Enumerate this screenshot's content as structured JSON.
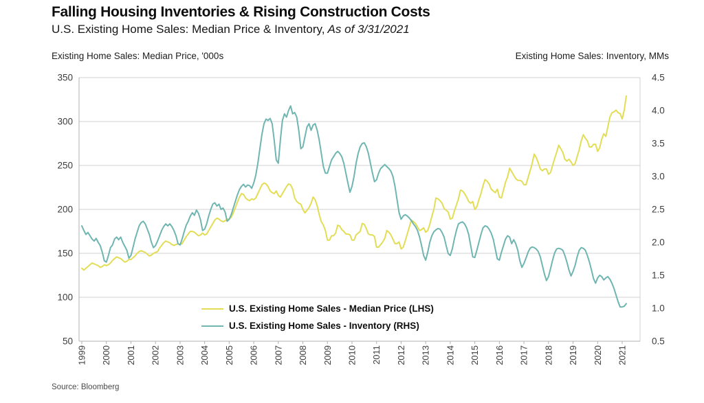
{
  "header": {
    "title": "Falling Housing Inventories & Rising Construction Costs",
    "subtitle_main": "U.S. Existing Home Sales: Median Price & Inventory,",
    "subtitle_date": " As of 3/31/2021"
  },
  "axis_headers": {
    "left": "Existing Home Sales: Median Price, '000s",
    "right": "Existing Home Sales: Inventory, MMs"
  },
  "legend": {
    "items": [
      {
        "label": "U.S. Existing Home Sales - Median Price (LHS)",
        "color": "#e3dd55"
      },
      {
        "label": "U.S. Existing Home Sales - Inventory (RHS)",
        "color": "#6fb5b1"
      }
    ]
  },
  "source": "Source: Bloomberg",
  "chart_data": {
    "type": "line",
    "title": "Falling Housing Inventories & Rising Construction Costs",
    "subtitle": "U.S. Existing Home Sales: Median Price & Inventory, As of 3/31/2021",
    "grid": "horizontal",
    "legend_position": "inside-bottom-center",
    "x_start_year": 1999,
    "x_end": "2021-03",
    "points_per_year": 12,
    "x_tick_labels": [
      "1999",
      "2000",
      "2001",
      "2002",
      "2003",
      "2004",
      "2005",
      "2006",
      "2007",
      "2008",
      "2009",
      "2010",
      "2011",
      "2012",
      "2013",
      "2014",
      "2015",
      "2016",
      "2017",
      "2018",
      "2019",
      "2020",
      "2021"
    ],
    "left_axis": {
      "label": "Existing Home Sales: Median Price, '000s",
      "min": 50,
      "max": 350,
      "tick_labels": [
        "350",
        "300",
        "250",
        "200",
        "150",
        "100",
        "50"
      ],
      "tick_values": [
        350,
        300,
        250,
        200,
        150,
        100,
        50
      ]
    },
    "right_axis": {
      "label": "Existing Home Sales: Inventory, MMs",
      "min": 0.5,
      "max": 4.5,
      "tick_labels": [
        "4.5",
        "4.0",
        "3.5",
        "3.0",
        "2.5",
        "2.0",
        "1.5",
        "1.0",
        "0.5"
      ],
      "tick_values": [
        4.5,
        4.0,
        3.5,
        3.0,
        2.5,
        2.0,
        1.5,
        1.0,
        0.5
      ]
    },
    "series": [
      {
        "name": "U.S. Existing Home Sales - Median Price (LHS)",
        "axis": "left",
        "color": "#e3dd55",
        "values": [
          133,
          131,
          133,
          135,
          137,
          139,
          138,
          137,
          136,
          134,
          135,
          137,
          136,
          137,
          139,
          142,
          144,
          146,
          145,
          144,
          142,
          140,
          141,
          143,
          143,
          145,
          147,
          150,
          152,
          153,
          152,
          151,
          149,
          147,
          148,
          150,
          151,
          152,
          156,
          159,
          162,
          164,
          163,
          162,
          160,
          159,
          160,
          161,
          160,
          161,
          165,
          169,
          172,
          175,
          175,
          174,
          172,
          170,
          171,
          173,
          171,
          172,
          176,
          180,
          184,
          188,
          190,
          189,
          187,
          186,
          187,
          189,
          189,
          191,
          196,
          202,
          208,
          214,
          218,
          217,
          213,
          211,
          210,
          212,
          211,
          213,
          218,
          223,
          228,
          230,
          229,
          226,
          221,
          219,
          218,
          221,
          216,
          214,
          218,
          222,
          226,
          229,
          228,
          223,
          213,
          209,
          207,
          206,
          200,
          196,
          199,
          202,
          207,
          214,
          211,
          204,
          194,
          186,
          182,
          176,
          165,
          165,
          170,
          170,
          173,
          182,
          181,
          177,
          175,
          172,
          172,
          171,
          165,
          165,
          171,
          173,
          175,
          184,
          183,
          178,
          172,
          171,
          171,
          169,
          157,
          157,
          160,
          163,
          167,
          176,
          174,
          171,
          166,
          161,
          161,
          163,
          155,
          157,
          164,
          172,
          180,
          188,
          186,
          184,
          180,
          176,
          177,
          179,
          174,
          176,
          183,
          192,
          200,
          213,
          212,
          210,
          207,
          201,
          199,
          197,
          189,
          190,
          198,
          205,
          212,
          222,
          221,
          218,
          214,
          209,
          207,
          209,
          200,
          203,
          211,
          218,
          227,
          234,
          232,
          229,
          223,
          221,
          219,
          223,
          214,
          213,
          222,
          231,
          237,
          247,
          243,
          239,
          235,
          233,
          233,
          232,
          228,
          228,
          236,
          244,
          252,
          263,
          259,
          253,
          246,
          244,
          246,
          246,
          240,
          242,
          250,
          258,
          265,
          273,
          269,
          265,
          257,
          255,
          257,
          254,
          250,
          252,
          260,
          268,
          278,
          285,
          281,
          278,
          271,
          271,
          274,
          274,
          266,
          270,
          280,
          286,
          283,
          294,
          305,
          310,
          311,
          313,
          310,
          309,
          303,
          313,
          329
        ]
      },
      {
        "name": "U.S. Existing Home Sales - Inventory (RHS)",
        "axis": "right",
        "color": "#6fb5b1",
        "values": [
          2.25,
          2.18,
          2.12,
          2.15,
          2.1,
          2.05,
          2.02,
          2.06,
          2.0,
          1.95,
          1.85,
          1.72,
          1.7,
          1.8,
          1.92,
          1.96,
          2.05,
          2.08,
          2.04,
          2.08,
          2.0,
          1.94,
          1.88,
          1.76,
          1.8,
          1.92,
          2.05,
          2.15,
          2.25,
          2.3,
          2.32,
          2.28,
          2.2,
          2.12,
          2.0,
          1.92,
          1.95,
          2.02,
          2.1,
          2.18,
          2.24,
          2.28,
          2.25,
          2.28,
          2.24,
          2.18,
          2.1,
          1.98,
          1.96,
          2.05,
          2.16,
          2.26,
          2.32,
          2.4,
          2.45,
          2.41,
          2.49,
          2.44,
          2.34,
          2.18,
          2.2,
          2.28,
          2.4,
          2.5,
          2.58,
          2.6,
          2.55,
          2.58,
          2.5,
          2.52,
          2.46,
          2.32,
          2.35,
          2.42,
          2.52,
          2.62,
          2.72,
          2.8,
          2.85,
          2.88,
          2.84,
          2.87,
          2.86,
          2.82,
          2.9,
          3.02,
          3.2,
          3.42,
          3.64,
          3.8,
          3.87,
          3.85,
          3.88,
          3.8,
          3.55,
          3.25,
          3.2,
          3.55,
          3.85,
          3.95,
          3.9,
          4.0,
          4.07,
          3.95,
          3.97,
          3.9,
          3.7,
          3.42,
          3.45,
          3.6,
          3.75,
          3.8,
          3.7,
          3.78,
          3.8,
          3.7,
          3.55,
          3.35,
          3.15,
          3.05,
          3.05,
          3.15,
          3.25,
          3.3,
          3.35,
          3.38,
          3.35,
          3.3,
          3.2,
          3.05,
          2.9,
          2.76,
          2.85,
          3.0,
          3.2,
          3.35,
          3.45,
          3.5,
          3.51,
          3.45,
          3.35,
          3.2,
          3.05,
          2.92,
          2.95,
          3.05,
          3.12,
          3.15,
          3.18,
          3.15,
          3.12,
          3.08,
          3.0,
          2.85,
          2.65,
          2.45,
          2.35,
          2.4,
          2.42,
          2.4,
          2.37,
          2.33,
          2.28,
          2.24,
          2.18,
          2.08,
          1.95,
          1.8,
          1.73,
          1.85,
          2.0,
          2.1,
          2.16,
          2.19,
          2.21,
          2.2,
          2.15,
          2.08,
          1.95,
          1.83,
          1.8,
          1.9,
          2.05,
          2.18,
          2.28,
          2.3,
          2.31,
          2.28,
          2.22,
          2.12,
          1.95,
          1.78,
          1.77,
          1.88,
          2.0,
          2.12,
          2.22,
          2.25,
          2.24,
          2.2,
          2.14,
          2.05,
          1.9,
          1.75,
          1.73,
          1.85,
          1.95,
          2.05,
          2.1,
          2.08,
          1.98,
          2.04,
          1.98,
          1.88,
          1.72,
          1.62,
          1.68,
          1.76,
          1.85,
          1.91,
          1.93,
          1.92,
          1.9,
          1.86,
          1.78,
          1.65,
          1.52,
          1.42,
          1.48,
          1.6,
          1.73,
          1.84,
          1.9,
          1.91,
          1.9,
          1.88,
          1.8,
          1.7,
          1.58,
          1.49,
          1.56,
          1.65,
          1.78,
          1.88,
          1.92,
          1.91,
          1.88,
          1.8,
          1.7,
          1.58,
          1.45,
          1.38,
          1.46,
          1.5,
          1.48,
          1.43,
          1.46,
          1.48,
          1.44,
          1.38,
          1.3,
          1.2,
          1.1,
          1.02,
          1.02,
          1.03,
          1.07
        ]
      }
    ]
  },
  "style": {
    "grid_color": "#d2d2d2",
    "axis_color": "#b0b0b0",
    "tick_label_color": "#3d3d3d"
  }
}
